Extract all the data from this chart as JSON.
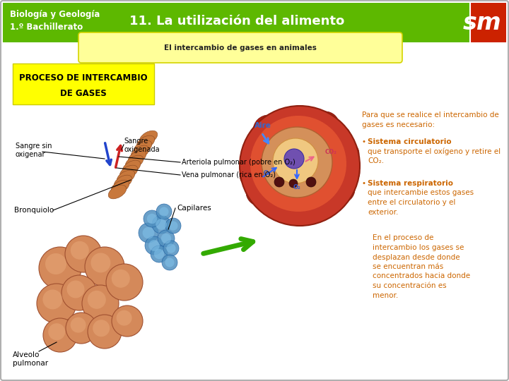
{
  "title_left": "Biología y Geología\n1.º Bachillerato",
  "title_center": "11. La utilización del alimento",
  "subtitle_yellow": "El intercambio de gases en animales",
  "box_title_line1": "PROCESO DE INTERCAMBIO",
  "box_title_line2": "DE GASES",
  "label_sangre_sin": "Sangre sin\noxigenar",
  "label_sangre_oxi": "Sangre\noxigenada",
  "label_arteriola": "Arteriola pulmonar (pobre en O₂)",
  "label_vena": "Vena pulmonar (rica en O₂)",
  "label_capilares": "Capilares",
  "label_bronquiolo": "Bronquiolo",
  "label_alveolo": "Alveolo\npulmonar",
  "label_aire": "Aire",
  "text_para_que_1": "Para que se realice el intercambio de",
  "text_para_que_2": "gases es necesario:",
  "text_sistema_circ_bold": "Sistema circulatorio",
  "text_sistema_circ_rest": " que transporte el oxígeno y retire el CO₂.",
  "text_sistema_resp_bold": "Sistema respiratorio",
  "text_sistema_resp_rest": " que intercambie estos gases entre el circulatorio y el exterior.",
  "text_proceso_1": "En el proceso de",
  "text_proceso_2": "intercambio los gases se",
  "text_proceso_3": "desplazan desde donde",
  "text_proceso_4": "se encuentran más",
  "text_proceso_5": "concentrados hacia donde",
  "text_proceso_6": "su concentración es",
  "text_proceso_7": "menor.",
  "color_header_green": "#5db800",
  "color_yellow_box": "#ffff99",
  "color_yellow_title": "#ffff00",
  "color_bg": "#ffffff",
  "color_border": "#b0b0b0",
  "color_text_brown": "#cc6600",
  "color_text_bold_brown": "#cc6600",
  "color_sm_red": "#cc2200",
  "color_sm_green": "#5db800",
  "fig_width": 7.2,
  "fig_height": 5.4,
  "dpi": 100
}
